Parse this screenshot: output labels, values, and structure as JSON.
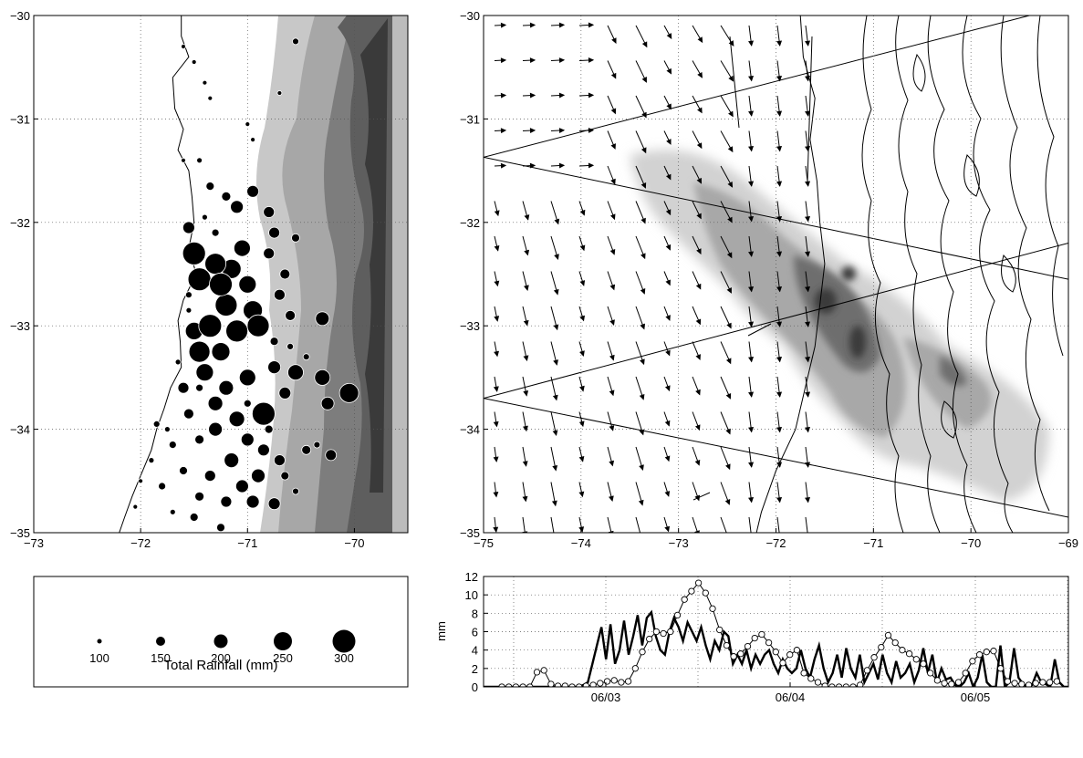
{
  "chart_data": [
    {
      "type": "scatter",
      "panel": "station-rainfall-map",
      "xlim": [
        -73,
        -69.5
      ],
      "ylim": [
        -35,
        -30
      ],
      "xticks": [
        -73,
        -72,
        -71,
        -70
      ],
      "yticks": [
        -30,
        -31,
        -32,
        -33,
        -34,
        -35
      ],
      "grid": true,
      "coastline": [
        [
          -71.62,
          -30.0
        ],
        [
          -71.62,
          -30.2
        ],
        [
          -71.55,
          -30.4
        ],
        [
          -71.7,
          -30.6
        ],
        [
          -71.68,
          -30.9
        ],
        [
          -71.6,
          -31.1
        ],
        [
          -71.65,
          -31.3
        ],
        [
          -71.55,
          -31.5
        ],
        [
          -71.52,
          -31.75
        ],
        [
          -71.5,
          -32.0
        ],
        [
          -71.55,
          -32.25
        ],
        [
          -71.48,
          -32.5
        ],
        [
          -71.6,
          -32.75
        ],
        [
          -71.65,
          -32.95
        ],
        [
          -71.63,
          -33.15
        ],
        [
          -71.62,
          -33.4
        ],
        [
          -71.72,
          -33.6
        ],
        [
          -71.78,
          -33.8
        ],
        [
          -71.85,
          -34.0
        ],
        [
          -71.9,
          -34.2
        ],
        [
          -72.0,
          -34.45
        ],
        [
          -72.08,
          -34.65
        ],
        [
          -72.15,
          -34.85
        ],
        [
          -72.2,
          -35.0
        ]
      ],
      "points": [
        {
          "lon": -71.5,
          "lat": -32.3,
          "mm": 300
        },
        {
          "lon": -71.45,
          "lat": -32.55,
          "mm": 300
        },
        {
          "lon": -71.3,
          "lat": -32.4,
          "mm": 280
        },
        {
          "lon": -71.25,
          "lat": -32.6,
          "mm": 300
        },
        {
          "lon": -71.2,
          "lat": -32.8,
          "mm": 290
        },
        {
          "lon": -71.35,
          "lat": -33.0,
          "mm": 300
        },
        {
          "lon": -71.1,
          "lat": -33.05,
          "mm": 290
        },
        {
          "lon": -71.15,
          "lat": -32.45,
          "mm": 260
        },
        {
          "lon": -71.05,
          "lat": -32.25,
          "mm": 230
        },
        {
          "lon": -71.0,
          "lat": -32.6,
          "mm": 240
        },
        {
          "lon": -70.95,
          "lat": -32.85,
          "mm": 260
        },
        {
          "lon": -70.9,
          "lat": -33.0,
          "mm": 290
        },
        {
          "lon": -71.5,
          "lat": -33.05,
          "mm": 240
        },
        {
          "lon": -71.45,
          "lat": -33.25,
          "mm": 280
        },
        {
          "lon": -71.25,
          "lat": -33.25,
          "mm": 250
        },
        {
          "lon": -71.4,
          "lat": -33.45,
          "mm": 240
        },
        {
          "lon": -71.2,
          "lat": -33.6,
          "mm": 210
        },
        {
          "lon": -71.0,
          "lat": -33.5,
          "mm": 230
        },
        {
          "lon": -70.85,
          "lat": -33.85,
          "mm": 300
        },
        {
          "lon": -71.1,
          "lat": -33.9,
          "mm": 220
        },
        {
          "lon": -71.3,
          "lat": -33.75,
          "mm": 210
        },
        {
          "lon": -70.55,
          "lat": -33.45,
          "mm": 220
        },
        {
          "lon": -70.3,
          "lat": -33.5,
          "mm": 220
        },
        {
          "lon": -70.05,
          "lat": -33.65,
          "mm": 260
        },
        {
          "lon": -70.25,
          "lat": -33.75,
          "mm": 190
        },
        {
          "lon": -70.65,
          "lat": -33.65,
          "mm": 180
        },
        {
          "lon": -70.75,
          "lat": -33.4,
          "mm": 190
        },
        {
          "lon": -70.3,
          "lat": -32.93,
          "mm": 200
        },
        {
          "lon": -70.6,
          "lat": -32.9,
          "mm": 160
        },
        {
          "lon": -70.7,
          "lat": -32.7,
          "mm": 170
        },
        {
          "lon": -70.65,
          "lat": -32.5,
          "mm": 160
        },
        {
          "lon": -70.8,
          "lat": -32.3,
          "mm": 170
        },
        {
          "lon": -70.75,
          "lat": -32.1,
          "mm": 170
        },
        {
          "lon": -71.55,
          "lat": -32.05,
          "mm": 180
        },
        {
          "lon": -71.1,
          "lat": -31.85,
          "mm": 190
        },
        {
          "lon": -70.95,
          "lat": -31.7,
          "mm": 180
        },
        {
          "lon": -71.2,
          "lat": -31.75,
          "mm": 150
        },
        {
          "lon": -70.8,
          "lat": -31.9,
          "mm": 170
        },
        {
          "lon": -70.55,
          "lat": -32.15,
          "mm": 140
        },
        {
          "lon": -71.35,
          "lat": -31.65,
          "mm": 140
        },
        {
          "lon": -71.6,
          "lat": -33.6,
          "mm": 170
        },
        {
          "lon": -71.55,
          "lat": -33.85,
          "mm": 160
        },
        {
          "lon": -71.3,
          "lat": -34.0,
          "mm": 200
        },
        {
          "lon": -71.0,
          "lat": -34.1,
          "mm": 190
        },
        {
          "lon": -70.85,
          "lat": -34.2,
          "mm": 180
        },
        {
          "lon": -71.15,
          "lat": -34.3,
          "mm": 210
        },
        {
          "lon": -70.9,
          "lat": -34.45,
          "mm": 200
        },
        {
          "lon": -70.7,
          "lat": -34.3,
          "mm": 170
        },
        {
          "lon": -71.35,
          "lat": -34.45,
          "mm": 170
        },
        {
          "lon": -71.05,
          "lat": -34.55,
          "mm": 190
        },
        {
          "lon": -70.95,
          "lat": -34.7,
          "mm": 190
        },
        {
          "lon": -70.75,
          "lat": -34.72,
          "mm": 180
        },
        {
          "lon": -71.2,
          "lat": -34.7,
          "mm": 170
        },
        {
          "lon": -71.45,
          "lat": -34.65,
          "mm": 150
        },
        {
          "lon": -71.45,
          "lat": -34.1,
          "mm": 150
        },
        {
          "lon": -71.7,
          "lat": -34.15,
          "mm": 130
        },
        {
          "lon": -71.6,
          "lat": -34.4,
          "mm": 140
        },
        {
          "lon": -71.8,
          "lat": -34.55,
          "mm": 130
        },
        {
          "lon": -71.5,
          "lat": -34.85,
          "mm": 140
        },
        {
          "lon": -71.25,
          "lat": -34.95,
          "mm": 140
        },
        {
          "lon": -71.85,
          "lat": -33.95,
          "mm": 120
        },
        {
          "lon": -71.75,
          "lat": -34.0,
          "mm": 110
        },
        {
          "lon": -71.9,
          "lat": -34.3,
          "mm": 110
        },
        {
          "lon": -72.0,
          "lat": -34.5,
          "mm": 100
        },
        {
          "lon": -72.05,
          "lat": -34.75,
          "mm": 100
        },
        {
          "lon": -71.7,
          "lat": -34.8,
          "mm": 110
        },
        {
          "lon": -70.65,
          "lat": -34.45,
          "mm": 140
        },
        {
          "lon": -70.55,
          "lat": -34.6,
          "mm": 120
        },
        {
          "lon": -70.45,
          "lat": -34.2,
          "mm": 150
        },
        {
          "lon": -70.22,
          "lat": -34.25,
          "mm": 170
        },
        {
          "lon": -70.35,
          "lat": -34.15,
          "mm": 120
        },
        {
          "lon": -70.8,
          "lat": -34.0,
          "mm": 140
        },
        {
          "lon": -71.45,
          "lat": -33.6,
          "mm": 130
        },
        {
          "lon": -71.65,
          "lat": -33.35,
          "mm": 110
        },
        {
          "lon": -70.75,
          "lat": -33.15,
          "mm": 140
        },
        {
          "lon": -70.6,
          "lat": -33.2,
          "mm": 120
        },
        {
          "lon": -70.45,
          "lat": -33.3,
          "mm": 120
        },
        {
          "lon": -71.4,
          "lat": -31.95,
          "mm": 110
        },
        {
          "lon": -71.3,
          "lat": -32.1,
          "mm": 130
        },
        {
          "lon": -71.6,
          "lat": -31.4,
          "mm": 100
        },
        {
          "lon": -71.45,
          "lat": -31.4,
          "mm": 110
        },
        {
          "lon": -71.6,
          "lat": -30.3,
          "mm": 100
        },
        {
          "lon": -71.5,
          "lat": -30.45,
          "mm": 100
        },
        {
          "lon": -71.4,
          "lat": -30.65,
          "mm": 100
        },
        {
          "lon": -71.35,
          "lat": -30.8,
          "mm": 100
        },
        {
          "lon": -71.0,
          "lat": -31.05,
          "mm": 100
        },
        {
          "lon": -70.95,
          "lat": -31.2,
          "mm": 100
        },
        {
          "lon": -70.7,
          "lat": -30.75,
          "mm": 100
        },
        {
          "lon": -70.55,
          "lat": -30.25,
          "mm": 120
        },
        {
          "lon": -71.55,
          "lat": -32.7,
          "mm": 120
        },
        {
          "lon": -71.55,
          "lat": -32.85,
          "mm": 110
        },
        {
          "lon": -71.0,
          "lat": -33.75,
          "mm": 130
        }
      ]
    },
    {
      "type": "contour",
      "panel": "simulated-precipitation-wind",
      "xlim": [
        -75,
        -69
      ],
      "ylim": [
        -35,
        -30
      ],
      "xticks": [
        -75,
        -74,
        -73,
        -72,
        -71,
        -70,
        -69
      ],
      "yticks": [
        -30,
        -31,
        -32,
        -33,
        -34,
        -35
      ],
      "grid": true,
      "coastline": [
        [
          -71.75,
          -30.0
        ],
        [
          -71.72,
          -30.4
        ],
        [
          -71.6,
          -30.8
        ],
        [
          -71.65,
          -31.2
        ],
        [
          -71.58,
          -31.6
        ],
        [
          -71.55,
          -32.0
        ],
        [
          -71.5,
          -32.4
        ],
        [
          -71.55,
          -32.8
        ],
        [
          -71.6,
          -33.2
        ],
        [
          -71.7,
          -33.6
        ],
        [
          -71.8,
          -34.0
        ],
        [
          -72.0,
          -34.4
        ],
        [
          -72.15,
          -34.8
        ],
        [
          -72.2,
          -35.0
        ]
      ],
      "cross_sections": [
        [
          [
            -75,
            -31.37
          ],
          [
            -69.4,
            -30.0
          ]
        ],
        [
          [
            -75,
            -31.37
          ],
          [
            -69,
            -32.55
          ]
        ],
        [
          [
            -75,
            -33.7
          ],
          [
            -69,
            -32.2
          ]
        ],
        [
          [
            -75,
            -33.7
          ],
          [
            -69,
            -34.85
          ]
        ]
      ]
    },
    {
      "type": "legend",
      "panel": "bubble-size-legend",
      "title": "Total Rainfall (mm)",
      "sizes": [
        100,
        150,
        200,
        250,
        300
      ],
      "labels": [
        "100",
        "150",
        "200",
        "250",
        "300"
      ]
    },
    {
      "type": "line",
      "panel": "rainfall-timeseries",
      "ylabel": "mm",
      "ylim": [
        0,
        12
      ],
      "yticks": [
        0,
        2,
        4,
        6,
        8,
        10,
        12
      ],
      "xticklabels": [
        "06/03",
        "06/04",
        "06/05"
      ],
      "grid": true,
      "series": [
        {
          "marker": "none",
          "linewidth": 2.4,
          "values": [
            0,
            0,
            0,
            0,
            0,
            0,
            0,
            0,
            0,
            0,
            0,
            0,
            0,
            0,
            0,
            0,
            0,
            0,
            0,
            0,
            0,
            0,
            0.2,
            0.5,
            2.5,
            4.5,
            6.5,
            3.0,
            6.8,
            2.5,
            4.0,
            7.2,
            3.5,
            5.5,
            7.8,
            4.5,
            7.5,
            8.1,
            5.5,
            4.0,
            3.5,
            6.0,
            7.5,
            6.5,
            5.0,
            7.0,
            6.0,
            5.0,
            6.5,
            4.5,
            3.0,
            5.0,
            4.0,
            6.0,
            5.5,
            2.5,
            3.5,
            2.5,
            4.0,
            2.0,
            3.5,
            2.5,
            3.5,
            4.0,
            2.5,
            1.5,
            3.0,
            2.0,
            1.5,
            2.0,
            4.0,
            2.0,
            1.0,
            3.0,
            4.5,
            2.0,
            0.5,
            1.5,
            3.5,
            1.0,
            4.2,
            2.0,
            1.0,
            3.5,
            0.5,
            1.5,
            2.5,
            0.8,
            3.5,
            1.5,
            0.5,
            2.8,
            1.0,
            1.5,
            2.5,
            0.5,
            1.8,
            4.2,
            1.5,
            3.5,
            0.5,
            2.0,
            0.8,
            1.0,
            0.2,
            0,
            0.5,
            1.5,
            0,
            1.0,
            3.5,
            0.5,
            0,
            0,
            4.5,
            0,
            0.5,
            4.2,
            1.0,
            0.3,
            0,
            0.2,
            1.5,
            0.5,
            0.3,
            0,
            3.0,
            0.5,
            0,
            0
          ]
        },
        {
          "marker": "circle",
          "linewidth": 1.0,
          "values": [
            0,
            0,
            0,
            0,
            0,
            1.6,
            1.8,
            0.3,
            0.1,
            0.1,
            0,
            0,
            0.1,
            0.2,
            0.4,
            0.6,
            0.7,
            0.5,
            0.6,
            2.0,
            3.8,
            5.2,
            6.0,
            5.8,
            6.0,
            7.8,
            9.5,
            10.4,
            11.3,
            10.2,
            8.5,
            6.2,
            4.5,
            3.3,
            3.6,
            4.4,
            5.3,
            5.7,
            4.8,
            3.8,
            2.6,
            3.5,
            4.0,
            1.5,
            0.9,
            0.5,
            0.1,
            0,
            0,
            0,
            0,
            0.2,
            1.8,
            3.2,
            4.3,
            5.6,
            4.8,
            4.0,
            3.6,
            3.0,
            2.5,
            1.5,
            0.7,
            0.4,
            0.3,
            0.5,
            1.5,
            2.8,
            3.5,
            3.8,
            3.9,
            2.0,
            0.6,
            0.4,
            0.3,
            0.2,
            0.4,
            0.5,
            0.5,
            0.6
          ]
        }
      ]
    }
  ]
}
